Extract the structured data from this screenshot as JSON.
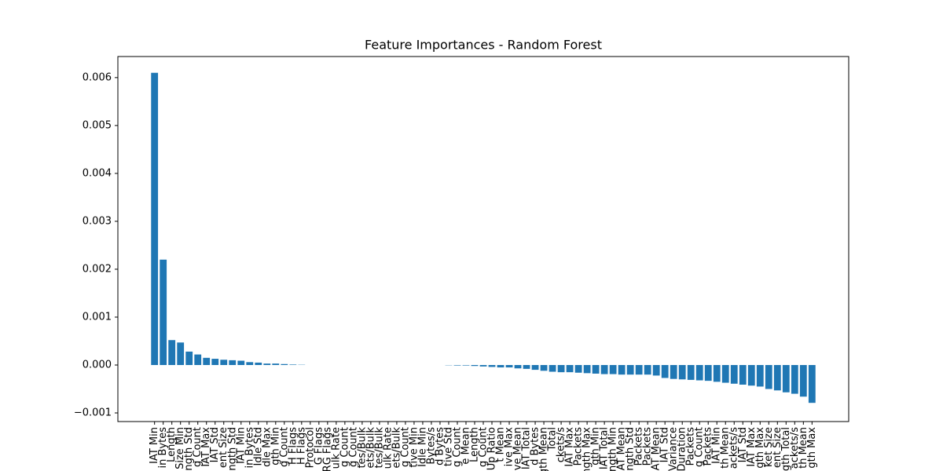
{
  "chart_data": {
    "type": "bar",
    "title": "Feature Importances - Random Forest",
    "color": "#1f77b4",
    "categories": [
      "IAT Min",
      "in Bytes",
      "Length",
      "Size Min",
      "ngth Std",
      "g Count",
      "IAT Max",
      "IAT Std",
      "ent Size",
      "ngth Std",
      "IAT Min",
      "in Bytes",
      "Idle Std",
      "dle Max",
      "gth Min",
      "g Count",
      "H Flags",
      "H Flags",
      "Protocol",
      "G Flags",
      "RG Flags",
      "ulk Rate",
      "g Count",
      "g Count",
      "tes/Bulk",
      "ets/Bulk",
      "tes/Bulk",
      "ulk Rate",
      "ets/Bulk",
      "g Count",
      "tive Min",
      "Idle Min",
      "Bytes/s",
      "d Bytes",
      "tive Std",
      "g Count",
      "e Mean",
      "Length",
      "g Count",
      "Up Ratio",
      "t Mean",
      "ive Max",
      "ve Mean",
      "IAT Total",
      "d Bytes",
      "gth Mean",
      "Total",
      "ckets/s",
      "IAT Max",
      "Packets",
      "ngth Max",
      "gth Min",
      "IAT Total",
      "ngth Min",
      "AT Mean",
      "ngth Std",
      "Packets",
      "Packets",
      "AT Mean",
      "IAT Std",
      "Variance",
      "Duration",
      "Packets",
      "g Count",
      "Packets",
      "IAT Min",
      "th Mean",
      "ackets/s",
      "IAT Std",
      "IAT Max",
      "gth Max",
      "ket Size",
      "ent Size",
      "gth Total",
      "ackets/s",
      "th Mean",
      "gth Max"
    ],
    "values": [
      0.0061,
      0.0022,
      0.00052,
      0.00047,
      0.00028,
      0.00022,
      0.00015,
      0.00013,
      0.00011,
      0.0001,
      9e-05,
      6e-05,
      5e-05,
      3e-05,
      3e-05,
      2e-05,
      1e-05,
      5e-06,
      0,
      0,
      0,
      0,
      0,
      0,
      0,
      0,
      0,
      0,
      0,
      0,
      0,
      0,
      0,
      0,
      -5e-06,
      -1e-05,
      -1e-05,
      -2e-05,
      -3e-05,
      -4e-05,
      -5e-05,
      -5e-05,
      -7e-05,
      -8e-05,
      -0.0001,
      -0.00012,
      -0.00014,
      -0.00015,
      -0.00015,
      -0.00016,
      -0.00017,
      -0.00018,
      -0.00019,
      -0.00019,
      -0.0002,
      -0.0002,
      -0.0002,
      -0.0002,
      -0.00022,
      -0.00027,
      -0.00029,
      -0.0003,
      -0.00031,
      -0.00032,
      -0.00033,
      -0.00035,
      -0.00037,
      -0.00039,
      -0.00041,
      -0.00043,
      -0.00045,
      -0.0005,
      -0.00053,
      -0.00057,
      -0.0006,
      -0.00066,
      -0.00079
    ],
    "xlim": [
      -4.24,
      80.24
    ],
    "ylim": [
      -0.00118,
      0.00644
    ],
    "yticks": [
      {
        "value": -0.001,
        "label": "−0.001"
      },
      {
        "value": 0,
        "label": "0.000"
      },
      {
        "value": 0.001,
        "label": "0.001"
      },
      {
        "value": 0.002,
        "label": "0.002"
      },
      {
        "value": 0.003,
        "label": "0.003"
      },
      {
        "value": 0.004,
        "label": "0.004"
      },
      {
        "value": 0.005,
        "label": "0.005"
      },
      {
        "value": 0.006,
        "label": "0.006"
      }
    ]
  }
}
